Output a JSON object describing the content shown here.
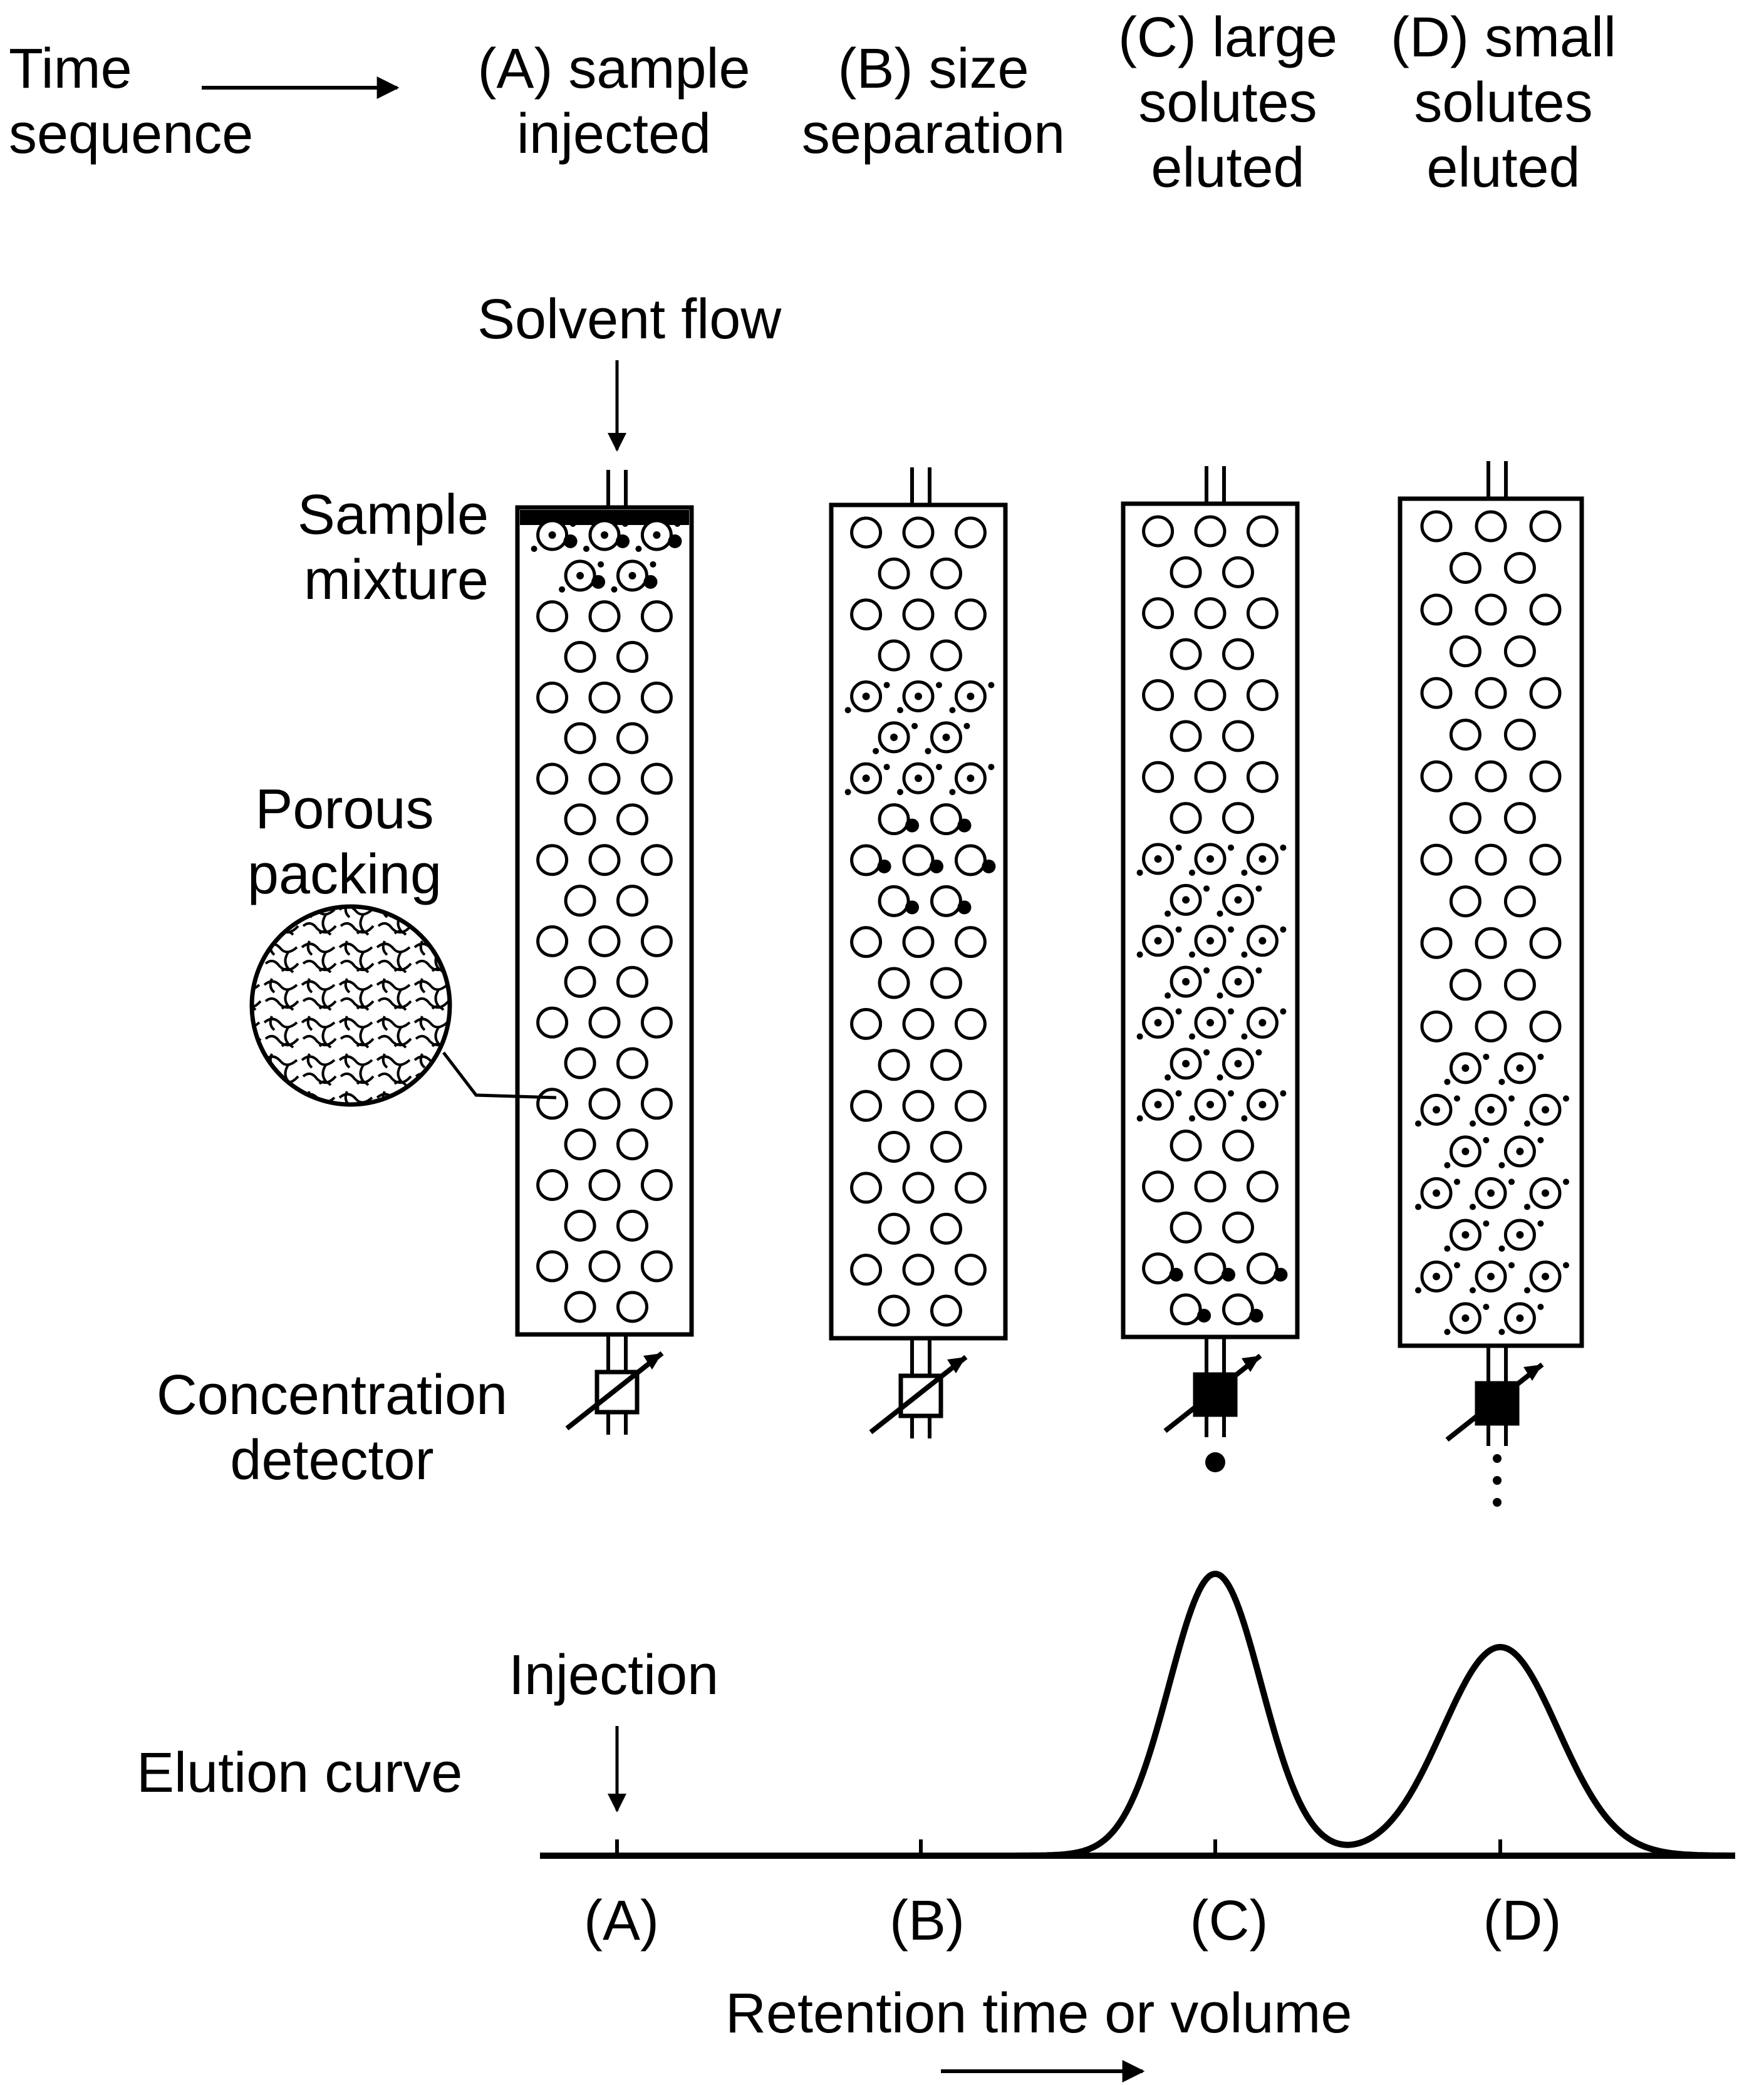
{
  "header": {
    "time_sequence": "Time\nsequence",
    "stages": [
      {
        "id": "A",
        "label": "(A) sample\ninjected"
      },
      {
        "id": "B",
        "label": "(B) size\nseparation"
      },
      {
        "id": "C",
        "label": "(C) large\nsolutes\neluted"
      },
      {
        "id": "D",
        "label": "(D) small\nsolutes\neluted"
      }
    ]
  },
  "labels": {
    "solvent_flow": "Solvent flow",
    "sample_mixture": "Sample\nmixture",
    "porous_packing": "Porous\npacking",
    "concentration_detector": "Concentration\ndetector",
    "injection": "Injection",
    "elution_curve": "Elution curve"
  },
  "axis": {
    "ticks": [
      "(A)",
      "(B)",
      "(C)",
      "(D)"
    ],
    "label": "Retention time or volume"
  },
  "elution_peaks": [
    {
      "position": "C",
      "relative_height": 1.0,
      "relative_width": 0.8
    },
    {
      "position": "D",
      "relative_height": 0.74,
      "relative_width": 1.0
    }
  ]
}
